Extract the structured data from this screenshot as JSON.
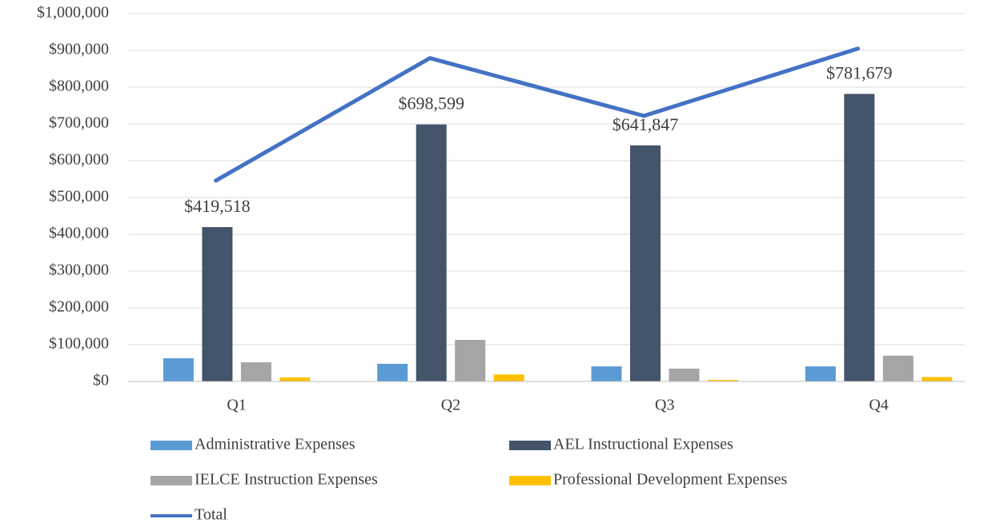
{
  "chart_data": {
    "type": "bar",
    "categories": [
      "Q1",
      "Q2",
      "Q3",
      "Q4"
    ],
    "series": [
      {
        "name": "Administrative Expenses",
        "color": "#5b9bd5",
        "values": [
          63000,
          48000,
          41000,
          41000
        ]
      },
      {
        "name": "AEL Instructional Expenses",
        "color": "#44546a",
        "values": [
          419518,
          698599,
          641847,
          781679
        ],
        "value_labels": [
          "$419,518",
          "$698,599",
          "$641,847",
          "$781,679"
        ]
      },
      {
        "name": "IELCE Instruction Expenses",
        "color": "#a5a5a5",
        "values": [
          52000,
          113000,
          35000,
          70000
        ]
      },
      {
        "name": "Professional Development Expenses",
        "color": "#ffc000",
        "values": [
          11000,
          19000,
          4000,
          12000
        ]
      },
      {
        "name": "Total",
        "color": "#4472c4",
        "type": "line",
        "values": [
          546000,
          879000,
          722000,
          905000
        ]
      }
    ],
    "ylim": [
      0,
      1000000
    ],
    "yticks": [
      {
        "value": 0,
        "label": "$0"
      },
      {
        "value": 100000,
        "label": "$100,000"
      },
      {
        "value": 200000,
        "label": "$200,000"
      },
      {
        "value": 300000,
        "label": "$300,000"
      },
      {
        "value": 400000,
        "label": "$400,000"
      },
      {
        "value": 500000,
        "label": "$500,000"
      },
      {
        "value": 600000,
        "label": "$600,000"
      },
      {
        "value": 700000,
        "label": "$700,000"
      },
      {
        "value": 800000,
        "label": "$800,000"
      },
      {
        "value": 900000,
        "label": "$900,000"
      },
      {
        "value": 1000000,
        "label": "$1,000,000"
      }
    ],
    "grid": true,
    "legend": "bottom"
  }
}
